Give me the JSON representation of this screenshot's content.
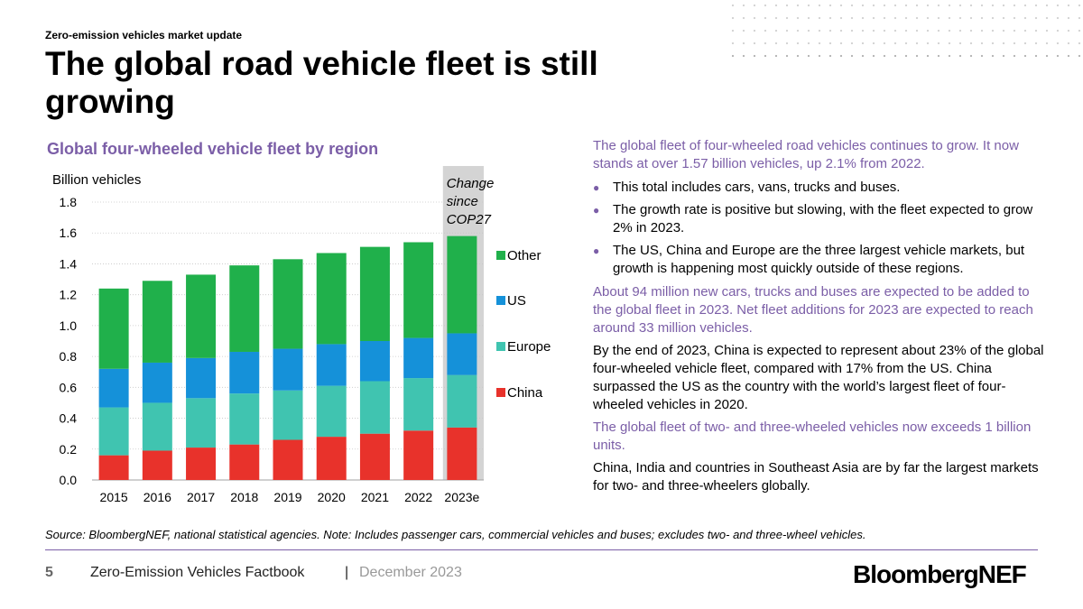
{
  "header": {
    "supertitle": "Zero-emission vehicles market update",
    "title": "The global road vehicle fleet is still growing"
  },
  "chart_data": {
    "type": "bar",
    "stacked": true,
    "title": "Global four-wheeled vehicle fleet by region",
    "ylabel": "Billion vehicles",
    "ylim": [
      0,
      1.8
    ],
    "yticks": [
      "0.0",
      "0.2",
      "0.4",
      "0.6",
      "0.8",
      "1.0",
      "1.2",
      "1.4",
      "1.6",
      "1.8"
    ],
    "categories": [
      "2015",
      "2016",
      "2017",
      "2018",
      "2019",
      "2020",
      "2021",
      "2022",
      "2023e"
    ],
    "series": [
      {
        "name": "China",
        "color": "#e8322b",
        "values": [
          0.16,
          0.19,
          0.21,
          0.23,
          0.26,
          0.28,
          0.3,
          0.32,
          0.34
        ]
      },
      {
        "name": "Europe",
        "color": "#40c4b0",
        "values": [
          0.31,
          0.31,
          0.32,
          0.33,
          0.32,
          0.33,
          0.34,
          0.34,
          0.34
        ]
      },
      {
        "name": "US",
        "color": "#1591d9",
        "values": [
          0.25,
          0.26,
          0.26,
          0.27,
          0.27,
          0.27,
          0.26,
          0.26,
          0.27
        ]
      },
      {
        "name": "Other",
        "color": "#20b04b",
        "values": [
          0.52,
          0.53,
          0.54,
          0.56,
          0.58,
          0.59,
          0.61,
          0.62,
          0.63
        ]
      }
    ],
    "grid": true,
    "legend": "right",
    "highlight": {
      "category": "2023e",
      "label_lines": [
        "Change",
        "since",
        "COP27"
      ],
      "color": "#d4d4d4"
    }
  },
  "text": {
    "p1": "The global fleet of four-wheeled road vehicles continues to grow. It now stands at over 1.57 billion vehicles, up 2.1% from 2022.",
    "bullets": [
      "This total includes cars, vans, trucks and buses.",
      "The growth rate is positive but slowing, with the fleet expected to grow 2% in 2023.",
      "The US, China and Europe are the three largest vehicle markets, but growth is happening most quickly outside of these regions."
    ],
    "bullet_glyph": "●",
    "p2": "About 94 million new cars, trucks and buses are expected to be added to the global fleet in 2023. Net fleet additions for 2023 are expected to reach around 33 million vehicles.",
    "p3": "By the end of 2023, China is expected to represent about 23% of the global four-wheeled vehicle fleet, compared with 17% from the US. China surpassed the US as the country with the world’s largest fleet of four-wheeled vehicles in 2020.",
    "p4": "The global fleet of two- and three-wheeled vehicles now exceeds 1 billion units.",
    "p5": "China, India and countries in Southeast Asia are by far the largest markets for two- and three-wheelers globally."
  },
  "source": "Source: BloombergNEF, national statistical agencies. Note: Includes passenger cars, commercial vehicles and buses; excludes two- and three-wheel vehicles.",
  "footer": {
    "page": "5",
    "book": "Zero-Emission Vehicles Factbook",
    "separator": "|",
    "date": "December 2023",
    "logo_part1": "Bloomberg",
    "logo_part2": "NEF"
  }
}
